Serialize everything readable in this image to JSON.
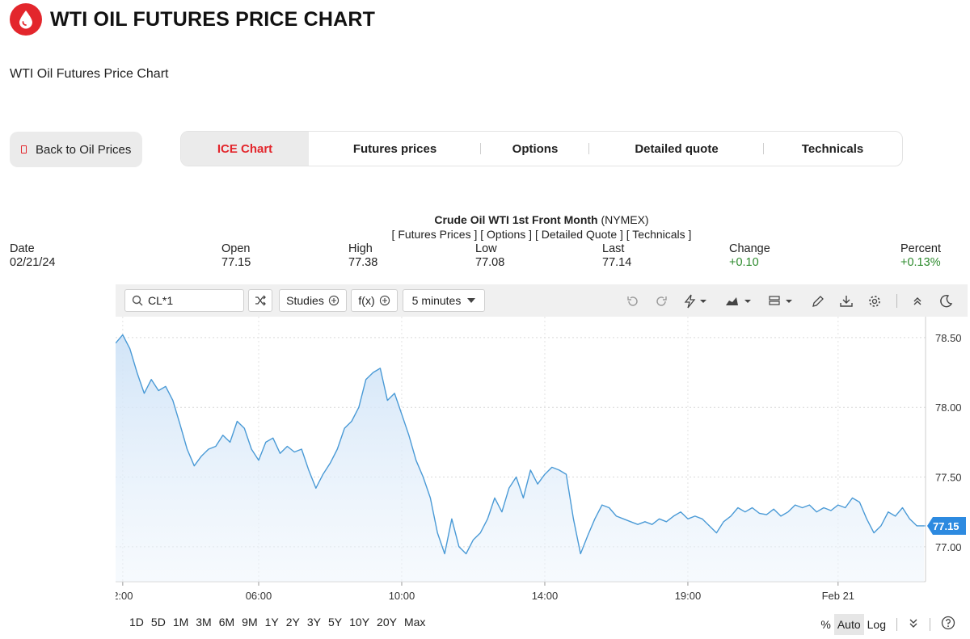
{
  "header": {
    "title": "WTI OIL FUTURES PRICE CHART",
    "subtitle": "WTI Oil Futures Price Chart"
  },
  "back_button": {
    "label": "Back to Oil Prices"
  },
  "tabs": [
    {
      "label": "ICE Chart",
      "active": true
    },
    {
      "label": "Futures prices",
      "active": false
    },
    {
      "label": "Options",
      "active": false
    },
    {
      "label": "Detailed quote",
      "active": false
    },
    {
      "label": "Technicals",
      "active": false
    }
  ],
  "quote": {
    "instrument": "Crude Oil WTI 1st Front Month",
    "exchange": "(NYMEX)",
    "links": "[ Futures Prices ] [ Options ] [ Detailed Quote ] [ Technicals ]",
    "columns": [
      {
        "label": "Date",
        "value": "02/21/24"
      },
      {
        "label": "Open",
        "value": "77.15"
      },
      {
        "label": "High",
        "value": "77.38"
      },
      {
        "label": "Low",
        "value": "77.08"
      },
      {
        "label": "Last",
        "value": "77.14"
      },
      {
        "label": "Change",
        "value": "+0.10"
      },
      {
        "label": "Percent",
        "value": "+0.13%"
      }
    ]
  },
  "toolbar": {
    "symbol": "CL*1",
    "studies_label": "Studies",
    "fx_label": "f(x)",
    "interval_label": "5 minutes"
  },
  "chart_data": {
    "type": "area",
    "ylim": [
      76.75,
      78.65
    ],
    "y_ticks": [
      "78.50",
      "78.00",
      "77.50",
      "77.00"
    ],
    "x_tick_labels": [
      "2:00",
      "06:00",
      "10:00",
      "14:00",
      "19:00",
      "Feb 21"
    ],
    "last_price_label": "77.15",
    "line_color": "#4a9ad6",
    "grid": true,
    "series": [
      {
        "values": [
          78.46,
          78.52,
          78.42,
          78.25,
          78.1,
          78.2,
          78.12,
          78.15,
          78.05,
          77.88,
          77.7,
          77.58,
          77.65,
          77.7,
          77.72,
          77.8,
          77.75,
          77.9,
          77.85,
          77.7,
          77.62,
          77.75,
          77.78,
          77.67,
          77.72,
          77.68,
          77.7,
          77.55,
          77.42,
          77.52,
          77.6,
          77.7,
          77.85,
          77.9,
          78.0,
          78.2,
          78.25,
          78.28,
          78.05,
          78.1,
          77.95,
          77.8,
          77.62,
          77.5,
          77.35,
          77.1,
          76.95,
          77.2,
          77.0,
          76.95,
          77.05,
          77.1,
          77.2,
          77.35,
          77.25,
          77.42,
          77.5,
          77.35,
          77.55,
          77.45,
          77.52,
          77.57,
          77.55,
          77.52,
          77.2,
          76.95,
          77.08,
          77.2,
          77.3,
          77.28,
          77.22,
          77.2,
          77.18,
          77.16,
          77.18,
          77.16,
          77.2,
          77.18,
          77.22,
          77.25,
          77.2,
          77.22,
          77.2,
          77.15,
          77.1,
          77.18,
          77.22,
          77.28,
          77.25,
          77.28,
          77.24,
          77.23,
          77.27,
          77.22,
          77.25,
          77.3,
          77.28,
          77.3,
          77.25,
          77.28,
          77.26,
          77.3,
          77.28,
          77.35,
          77.32,
          77.2,
          77.1,
          77.15,
          77.25,
          77.22,
          77.28,
          77.2,
          77.15,
          77.15
        ]
      }
    ]
  },
  "range_buttons": [
    "1D",
    "5D",
    "1M",
    "3M",
    "6M",
    "9M",
    "1Y",
    "2Y",
    "3Y",
    "5Y",
    "10Y",
    "20Y",
    "Max"
  ],
  "scale_options": {
    "percent": "%",
    "auto": "Auto",
    "log": "Log"
  }
}
